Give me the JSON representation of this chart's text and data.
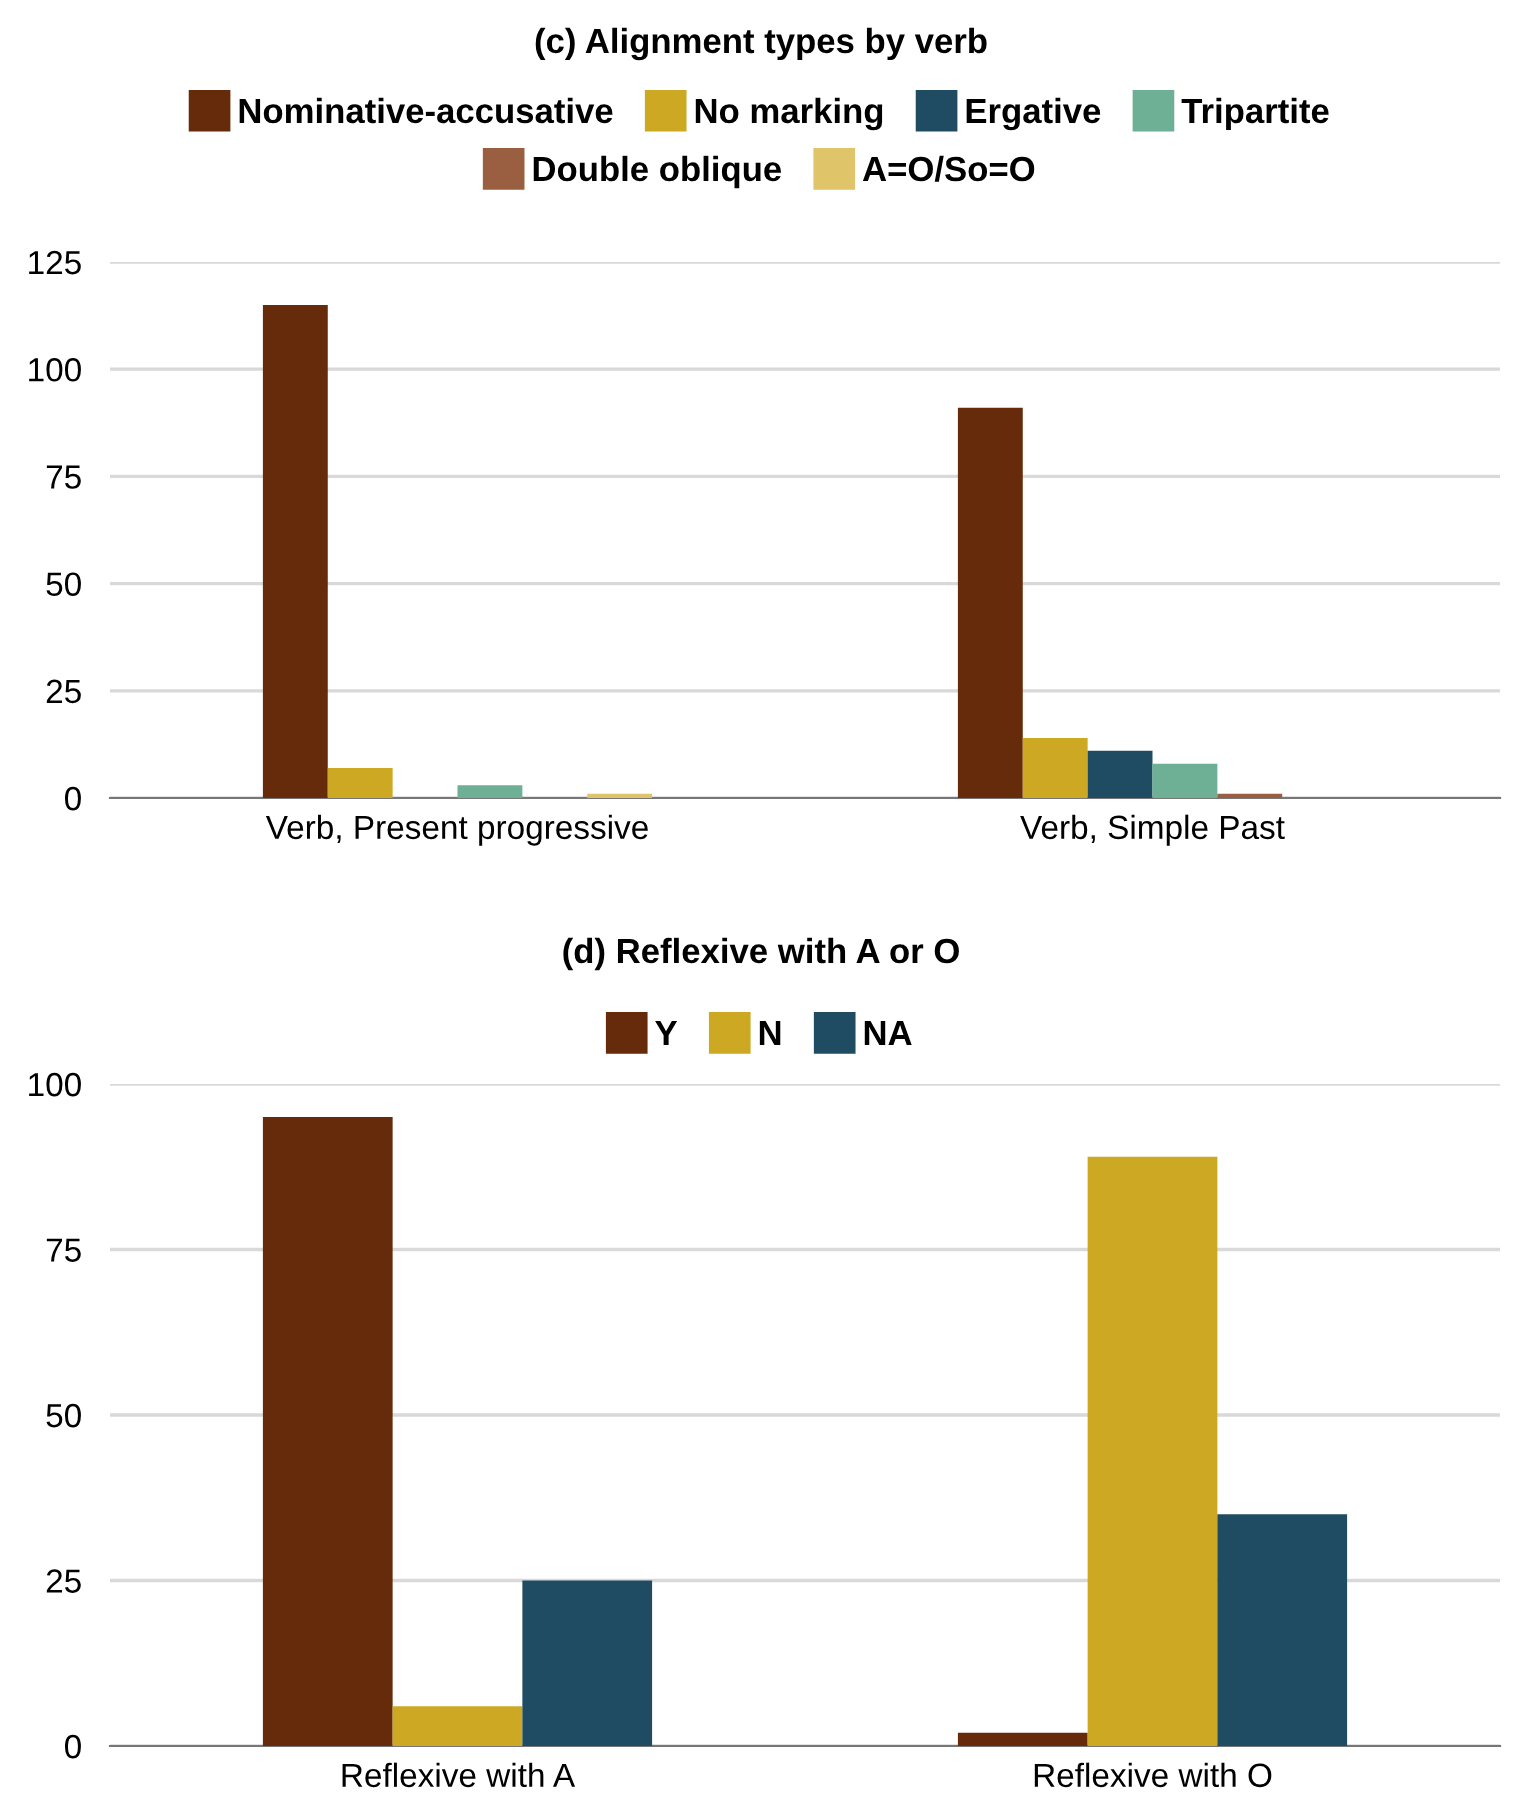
{
  "chart_data": [
    {
      "type": "bar",
      "title": "(c) Alignment types by verb",
      "categories": [
        "Verb, Present progressive",
        "Verb, Simple Past"
      ],
      "series": [
        {
          "name": "Nominative-accusative",
          "color": "#662b0a",
          "values": [
            115,
            91
          ]
        },
        {
          "name": "No marking",
          "color": "#cca823",
          "values": [
            7,
            14
          ]
        },
        {
          "name": "Ergative",
          "color": "#204c63",
          "values": [
            0,
            11
          ]
        },
        {
          "name": "Tripartite",
          "color": "#6db096",
          "values": [
            3,
            8
          ]
        },
        {
          "name": "Double oblique",
          "color": "#9a5f40",
          "values": [
            0,
            1
          ]
        },
        {
          "name": "A=O/So=O",
          "color": "#dfc46a",
          "values": [
            1,
            0
          ]
        }
      ],
      "ylim": [
        0,
        125
      ],
      "yticks": [
        0,
        25,
        50,
        75,
        100,
        125
      ],
      "grid": "y",
      "legend": "top"
    },
    {
      "type": "bar",
      "title": "(d) Reflexive with A or O",
      "categories": [
        "Reflexive with A",
        "Reflexive with O"
      ],
      "series": [
        {
          "name": "Y",
          "color": "#662b0a",
          "values": [
            95,
            2
          ]
        },
        {
          "name": "N",
          "color": "#cca823",
          "values": [
            6,
            89
          ]
        },
        {
          "name": "NA",
          "color": "#204c63",
          "values": [
            25,
            35
          ]
        }
      ],
      "ylim": [
        0,
        100
      ],
      "yticks": [
        0,
        25,
        50,
        75,
        100
      ],
      "grid": "y",
      "legend": "top"
    }
  ]
}
